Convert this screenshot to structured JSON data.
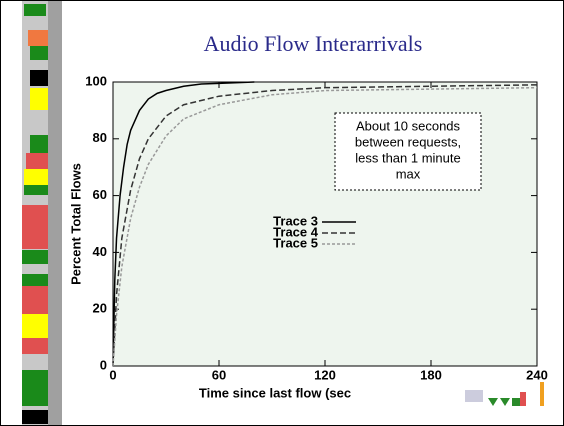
{
  "chart_data": {
    "type": "line",
    "title": "Audio Flow Interarrivals",
    "x_label": "Time since last flow (sec",
    "y_label": "Percent Total Flows",
    "annotation": [
      "About 10 seconds",
      "between requests,",
      "less than 1 minute",
      "max"
    ],
    "xlim": [
      0,
      240
    ],
    "xticks": [
      0,
      60,
      120,
      180,
      240
    ],
    "ylim": [
      0,
      100
    ],
    "yticks": [
      0,
      20,
      40,
      60,
      80,
      100
    ],
    "series": [
      {
        "name": "Trace 3",
        "color": "#000000",
        "dash": "solid",
        "x": [
          0,
          1,
          2,
          4,
          6,
          8,
          10,
          15,
          20,
          25,
          30,
          40,
          50,
          60,
          80
        ],
        "values": [
          0,
          30,
          45,
          60,
          70,
          78,
          83,
          90,
          94,
          96,
          97,
          98.5,
          99.3,
          99.5,
          100
        ]
      },
      {
        "name": "Trace 4",
        "color": "#333333",
        "dash": "dashed",
        "x": [
          0,
          2,
          5,
          10,
          15,
          20,
          30,
          40,
          60,
          90,
          120,
          180,
          240
        ],
        "values": [
          0,
          25,
          45,
          62,
          73,
          80,
          88,
          92,
          95,
          97,
          98,
          98.5,
          99
        ]
      },
      {
        "name": "Trace 5",
        "color": "#999999",
        "dash": "dotted",
        "x": [
          0,
          2,
          5,
          10,
          15,
          20,
          30,
          40,
          60,
          90,
          120,
          180,
          240
        ],
        "values": [
          0,
          18,
          35,
          52,
          63,
          71,
          81,
          87,
          92,
          95.5,
          97,
          97.5,
          98
        ]
      }
    ]
  }
}
